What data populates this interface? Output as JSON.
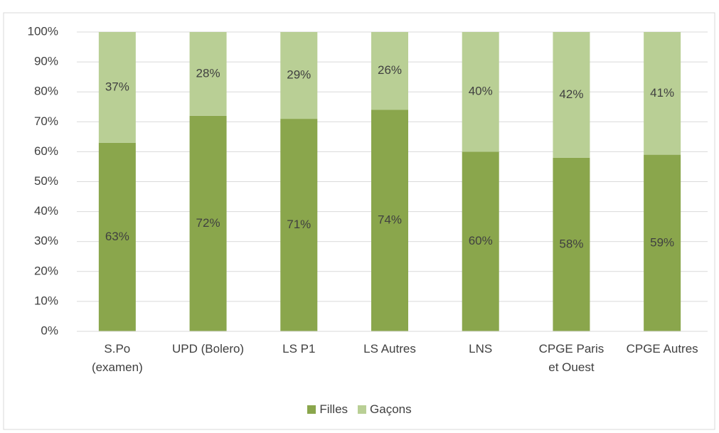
{
  "chart_data": {
    "type": "stacked_bar",
    "categories": [
      "S.Po\n(examen)",
      "UPD (Bolero)",
      "LS P1",
      "LS Autres",
      "LNS",
      "CPGE Paris\net Ouest",
      "CPGE Autres"
    ],
    "series": [
      {
        "name": "Filles",
        "color": "#8aa64c",
        "values": [
          63,
          72,
          71,
          74,
          60,
          58,
          59
        ],
        "value_labels": [
          "63%",
          "72%",
          "71%",
          "74%",
          "60%",
          "58%",
          "59%"
        ]
      },
      {
        "name": "Gaçons",
        "color": "#b9cf95",
        "values": [
          37,
          28,
          29,
          26,
          40,
          42,
          41
        ],
        "value_labels": [
          "37%",
          "28%",
          "29%",
          "26%",
          "40%",
          "42%",
          "41%"
        ]
      }
    ],
    "ylim": [
      0,
      100
    ],
    "yticks": [
      {
        "value": 0,
        "label": "0%"
      },
      {
        "value": 10,
        "label": "10%"
      },
      {
        "value": 20,
        "label": "20%"
      },
      {
        "value": 30,
        "label": "30%"
      },
      {
        "value": 40,
        "label": "40%"
      },
      {
        "value": 50,
        "label": "50%"
      },
      {
        "value": 60,
        "label": "60%"
      },
      {
        "value": 70,
        "label": "70%"
      },
      {
        "value": 80,
        "label": "80%"
      },
      {
        "value": 90,
        "label": "90%"
      },
      {
        "value": 100,
        "label": "100%"
      }
    ],
    "grid": true,
    "legend": "bottom"
  }
}
